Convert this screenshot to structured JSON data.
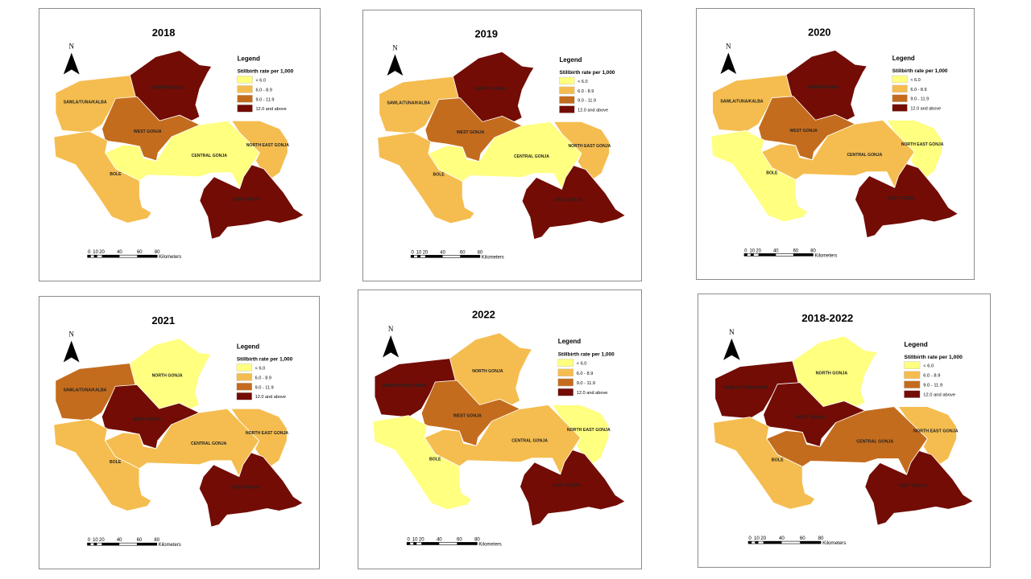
{
  "legend": {
    "title": "Legend",
    "subtitle": "Stillbirth rate per 1,000",
    "classes": [
      {
        "label": "< 6.0",
        "color": "#ffff80"
      },
      {
        "label": "6.0 - 8.9",
        "color": "#f5bd4f"
      },
      {
        "label": "9.0 - 11.9",
        "color": "#c46c1e"
      },
      {
        "label": "12.0 and above",
        "color": "#730c05"
      }
    ]
  },
  "north_label": "N",
  "scale": {
    "ticks": [
      "0",
      "10",
      "20",
      "40",
      "60",
      "80"
    ],
    "unit": "Kilometers"
  },
  "districts": {
    "sawla": "SAWLA/TUNA/KALBA",
    "north": "NORTH GONJA",
    "west": "WEST GONJA",
    "central": "CENTRAL GONJA",
    "northeast": "NORTH EAST GONJA",
    "bole": "BOLE",
    "east": "EAST GONJA"
  },
  "maps": [
    {
      "title": "2018",
      "classes": {
        "sawla": 1,
        "north": 3,
        "west": 2,
        "central": 0,
        "northeast": 1,
        "bole": 1,
        "east": 3
      }
    },
    {
      "title": "2019",
      "classes": {
        "sawla": 1,
        "north": 3,
        "west": 2,
        "central": 0,
        "northeast": 1,
        "bole": 1,
        "east": 3
      }
    },
    {
      "title": "2020",
      "classes": {
        "sawla": 1,
        "north": 3,
        "west": 2,
        "central": 1,
        "northeast": 0,
        "bole": 0,
        "east": 3
      }
    },
    {
      "title": "2021",
      "classes": {
        "sawla": 2,
        "north": 0,
        "west": 3,
        "central": 1,
        "northeast": 1,
        "bole": 1,
        "east": 3
      }
    },
    {
      "title": "2022",
      "classes": {
        "sawla": 3,
        "north": 1,
        "west": 2,
        "central": 1,
        "northeast": 0,
        "bole": 0,
        "east": 3
      }
    },
    {
      "title": "2018-2022",
      "classes": {
        "sawla": 3,
        "north": 0,
        "west": 3,
        "central": 2,
        "northeast": 1,
        "bole": 1,
        "east": 3
      }
    }
  ]
}
